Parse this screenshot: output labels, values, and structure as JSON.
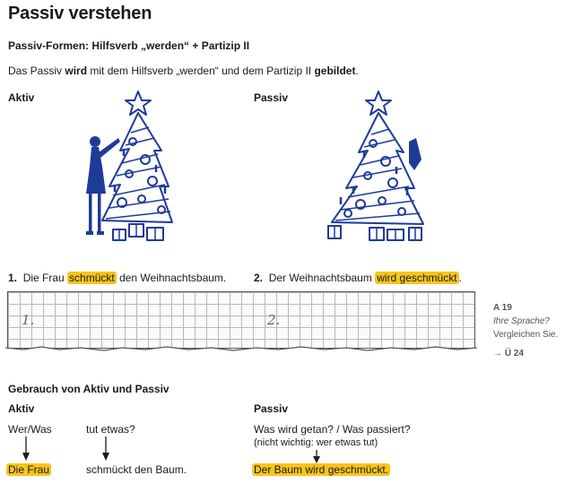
{
  "title": "Passiv verstehen",
  "forms_heading": "Passiv-Formen: Hilfsverb „werden“ + Partizip II",
  "intro": {
    "part1": "Das Passiv ",
    "bold1": "wird",
    "part2": " mit dem Hilfsverb „werden“ und dem Partizip II ",
    "bold2": "gebildet",
    "part3": "."
  },
  "labels": {
    "aktiv": "Aktiv",
    "passiv": "Passiv"
  },
  "illustrations": {
    "aktiv": "woman-decorating-tree",
    "passiv": "decorated-tree"
  },
  "sentence1": {
    "num": "1.",
    "pre": "Die Frau ",
    "hl": "schmückt",
    "post": " den Weihnachtsbaum."
  },
  "sentence2": {
    "num": "2.",
    "pre": "Der Weihnachtsbaum ",
    "hl": "wird geschmückt",
    "post": "."
  },
  "writing": {
    "n1": "1.",
    "n2": "2."
  },
  "side_note": {
    "code": "A 19",
    "line1": "Ihre Sprache?",
    "line2": "Vergleichen Sie.",
    "ref": "→ Ü 24"
  },
  "usage": {
    "heading": "Gebrauch von Aktiv und Passiv",
    "aktiv_label": "Aktiv",
    "passiv_label": "Passiv",
    "who": "Wer/Was",
    "does": "tut etwas?",
    "subject": "Die Frau",
    "predicate": "schmückt den Baum.",
    "q_passiv": "Was wird getan? / Was passiert?",
    "note_passiv": "(nicht wichtig: wer etwas tut)",
    "answer_passiv": "Der Baum wird geschmückt."
  },
  "colors": {
    "highlight": "#f7c51c",
    "illustration": "#1e3b9a"
  }
}
